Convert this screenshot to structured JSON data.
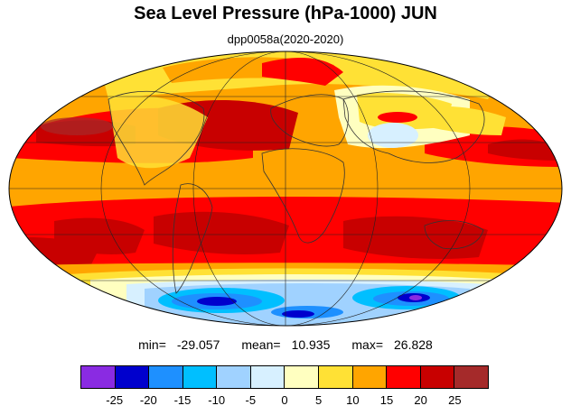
{
  "title": "Sea Level Pressure (hPa-1000) JUN",
  "subtitle": "dpp0058a(2020-2020)",
  "stats": {
    "min_label": "min=",
    "min_value": "-29.057",
    "mean_label": "mean=",
    "mean_value": "10.935",
    "max_label": "max=",
    "max_value": "26.828"
  },
  "colorbar": {
    "colors": [
      "#8a2be2",
      "#0000cd",
      "#1e90ff",
      "#00bfff",
      "#a0d2ff",
      "#d7f0ff",
      "#ffffc0",
      "#ffe135",
      "#ffa500",
      "#ff0000",
      "#c80000",
      "#a52a2a"
    ],
    "ticks": [
      "-25",
      "-20",
      "-15",
      "-10",
      "-5",
      "0",
      "5",
      "10",
      "15",
      "20",
      "25"
    ]
  },
  "map": {
    "projection": "mollweide",
    "variable": "sea level pressure anomaly field"
  }
}
